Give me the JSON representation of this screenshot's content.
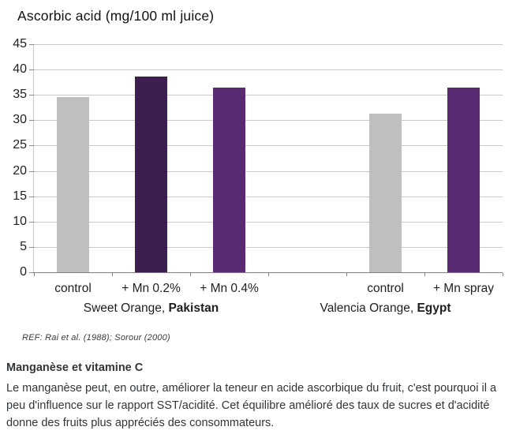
{
  "chart_data": {
    "type": "bar",
    "title": "Ascorbic acid (mg/100 ml juice)",
    "xlabel": "",
    "ylabel": "",
    "ylim": [
      0,
      45
    ],
    "ytick_step": 5,
    "yticks": [
      0,
      5,
      10,
      15,
      20,
      25,
      30,
      35,
      40,
      45
    ],
    "grid": true,
    "legend_position": "none",
    "slot_count": 6,
    "bars": [
      {
        "slot": 0,
        "label": "control",
        "value": 34.5,
        "color": "#bfbfbf"
      },
      {
        "slot": 1,
        "label": "+ Mn 0.2%",
        "value": 38.6,
        "color": "#3d1e50"
      },
      {
        "slot": 2,
        "label": "+ Mn 0.4%",
        "value": 36.4,
        "color": "#5a2a72"
      },
      {
        "slot": 4,
        "label": "control",
        "value": 31.3,
        "color": "#bfbfbf"
      },
      {
        "slot": 5,
        "label": "+ Mn spray",
        "value": 36.4,
        "color": "#5a2a72"
      }
    ],
    "groups": [
      {
        "label_regular": "Sweet Orange, ",
        "label_bold": "Pakistan",
        "slot_start": 0,
        "slot_end": 2
      },
      {
        "label_regular": "Valencia Orange, ",
        "label_bold": "Egypt",
        "slot_start": 3,
        "slot_end": 5
      }
    ],
    "colors": {
      "control_bar": "#bfbfbf",
      "mn_dark_bar": "#3d1e50",
      "mn_medium_bar": "#5a2a72",
      "gridline": "#c9c9c9",
      "axis_line": "#7f7f7f"
    }
  },
  "ref_note": "REF: Rai et al. (1988); Sorour (2000)",
  "footer": {
    "heading": "Manganèse et vitamine C",
    "body": "Le manganèse peut, en outre, améliorer la teneur en acide ascorbique du fruit, c'est pourquoi il a peu d'influence sur le rapport SST/acidité. Cet équilibre amélioré des taux de sucres et d'acidité donne des fruits plus appréciés des consommateurs."
  }
}
